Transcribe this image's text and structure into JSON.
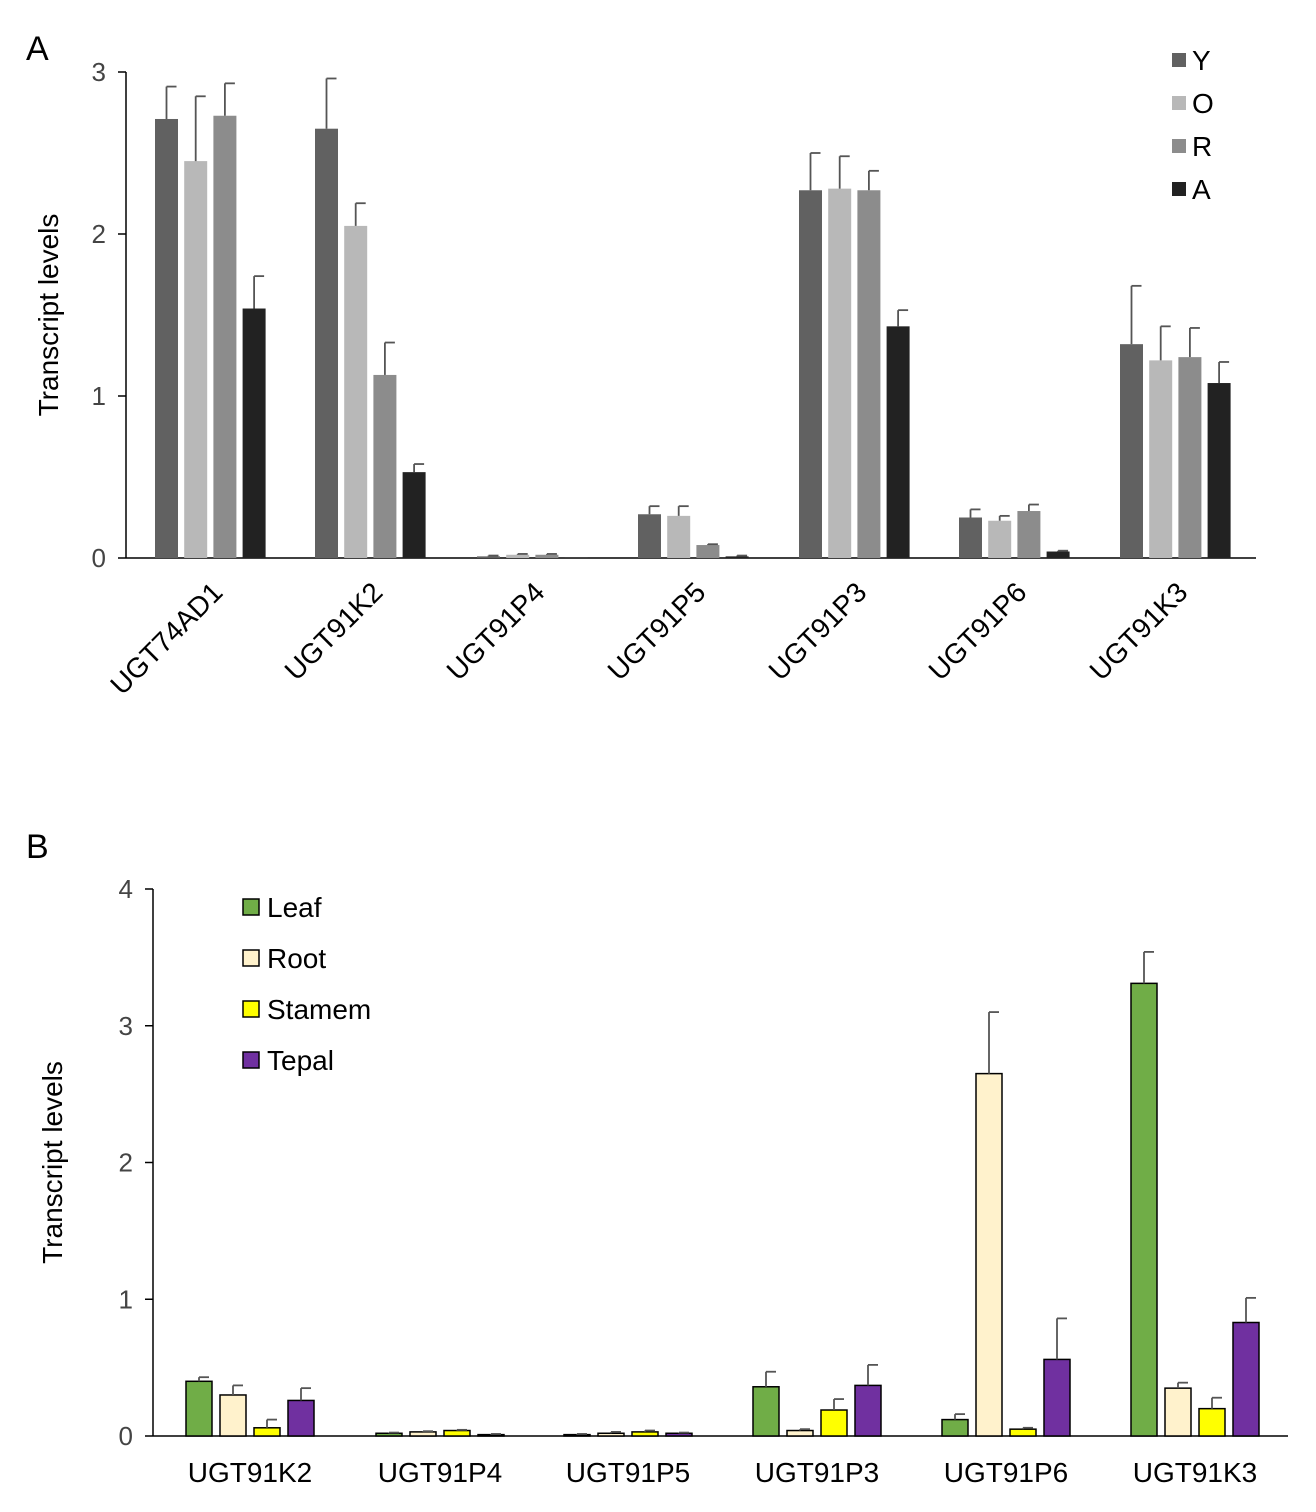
{
  "chart_data": [
    {
      "panel": "A",
      "type": "bar",
      "ylabel": "Transcript levels",
      "ylim": [
        0,
        3
      ],
      "yticks": [
        "0",
        "1",
        "2",
        "3"
      ],
      "categories": [
        "UGT74AD1",
        "UGT91K2",
        "UGT91P4",
        "UGT91P5",
        "UGT91P3",
        "UGT91P6",
        "UGT91K3"
      ],
      "legend_position": "top-right",
      "series": [
        {
          "name": "Y",
          "color": "#616161",
          "values": [
            2.71,
            2.65,
            0.01,
            0.27,
            2.27,
            0.25,
            1.32
          ],
          "errors": [
            0.2,
            0.31,
            0.005,
            0.05,
            0.23,
            0.05,
            0.36
          ]
        },
        {
          "name": "O",
          "color": "#b8b8b8",
          "values": [
            2.45,
            2.05,
            0.02,
            0.26,
            2.28,
            0.23,
            1.22
          ],
          "errors": [
            0.4,
            0.14,
            0.005,
            0.06,
            0.2,
            0.03,
            0.21
          ]
        },
        {
          "name": "R",
          "color": "#8c8c8c",
          "values": [
            2.73,
            1.13,
            0.02,
            0.08,
            2.27,
            0.29,
            1.24
          ],
          "errors": [
            0.2,
            0.2,
            0.005,
            0.005,
            0.12,
            0.04,
            0.18
          ]
        },
        {
          "name": "A",
          "color": "#222222",
          "values": [
            1.54,
            0.53,
            0.0,
            0.01,
            1.43,
            0.04,
            1.08
          ],
          "errors": [
            0.2,
            0.05,
            0.0,
            0.005,
            0.1,
            0.005,
            0.13
          ]
        }
      ]
    },
    {
      "panel": "B",
      "type": "bar",
      "ylabel": "Transcript levels",
      "ylim": [
        0,
        4
      ],
      "yticks": [
        "0",
        "1",
        "2",
        "3",
        "4"
      ],
      "categories": [
        "UGT91K2",
        "UGT91P4",
        "UGT91P5",
        "UGT91P3",
        "UGT91P6",
        "UGT91K3"
      ],
      "legend_position": "top-left",
      "series": [
        {
          "name": "Leaf",
          "color": "#70ad47",
          "values": [
            0.4,
            0.02,
            0.01,
            0.36,
            0.12,
            3.31
          ],
          "errors": [
            0.03,
            0.005,
            0.005,
            0.11,
            0.04,
            0.23
          ]
        },
        {
          "name": "Root",
          "color": "#fff2cc",
          "values": [
            0.3,
            0.03,
            0.02,
            0.04,
            2.65,
            0.35
          ],
          "errors": [
            0.07,
            0.005,
            0.01,
            0.01,
            0.45,
            0.04
          ]
        },
        {
          "name": "Stamem",
          "color": "#ffff00",
          "values": [
            0.06,
            0.04,
            0.03,
            0.19,
            0.05,
            0.2
          ],
          "errors": [
            0.06,
            0.005,
            0.01,
            0.08,
            0.01,
            0.08
          ]
        },
        {
          "name": "Tepal",
          "color": "#7030a0",
          "values": [
            0.26,
            0.01,
            0.02,
            0.37,
            0.56,
            0.83
          ],
          "errors": [
            0.09,
            0.005,
            0.005,
            0.15,
            0.3,
            0.18
          ]
        }
      ]
    }
  ]
}
